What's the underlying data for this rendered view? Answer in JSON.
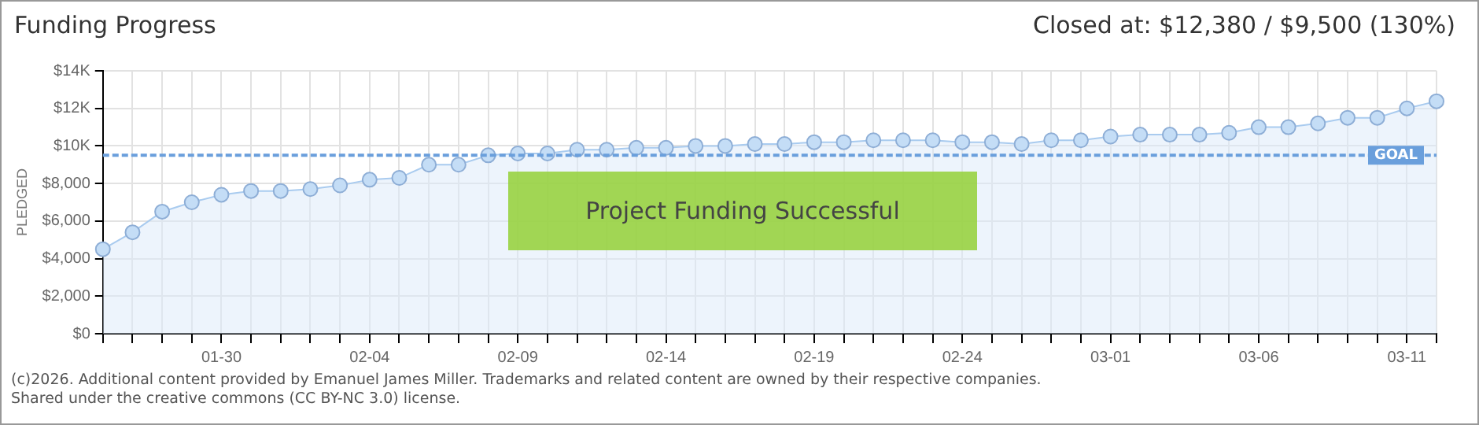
{
  "chart_data": {
    "type": "area",
    "title": "Funding Progress",
    "subtitle": "Closed at: $12,380 / $9,500 (130%)",
    "ylabel": "PLEDGED",
    "categories": [
      null,
      null,
      null,
      null,
      "01-30",
      null,
      null,
      null,
      null,
      "02-04",
      null,
      null,
      null,
      null,
      "02-09",
      null,
      null,
      null,
      null,
      "02-14",
      null,
      null,
      null,
      null,
      "02-19",
      null,
      null,
      null,
      null,
      "02-24",
      null,
      null,
      null,
      null,
      "03-01",
      null,
      null,
      null,
      null,
      "03-06",
      null,
      null,
      null,
      null,
      "03-11",
      null
    ],
    "series": [
      {
        "color": "#a9cbef",
        "values": [
          4500,
          5400,
          6500,
          7000,
          7400,
          7600,
          7600,
          7700,
          7900,
          8200,
          8300,
          9000,
          9000,
          9500,
          9600,
          9600,
          9800,
          9800,
          9900,
          9900,
          10000,
          10000,
          10100,
          10100,
          10200,
          10200,
          10300,
          10300,
          10300,
          10200,
          10200,
          10100,
          10300,
          10300,
          10500,
          10600,
          10600,
          10600,
          10700,
          11000,
          11000,
          11200,
          11500,
          11500,
          12000,
          12380
        ]
      }
    ],
    "ylim": [
      0,
      14000
    ],
    "yticks": [
      {
        "value": 0,
        "label": "$0"
      },
      {
        "value": 2000,
        "label": "$2,000"
      },
      {
        "value": 4000,
        "label": "$4,000"
      },
      {
        "value": 6000,
        "label": "$6,000"
      },
      {
        "value": 8000,
        "label": "$8,000"
      },
      {
        "value": 10000,
        "label": "$10K"
      },
      {
        "value": 12000,
        "label": "$12K"
      },
      {
        "value": 14000,
        "label": "$14K"
      }
    ],
    "grid": true,
    "marker": "circle",
    "legend": false,
    "ref_lines": [
      {
        "axis": "y",
        "value": 9500,
        "label": "GOAL",
        "color": "#6a9fdc",
        "line_style": "dashed"
      }
    ],
    "annotations": [
      "Project Funding Successful",
      "(c)2026. Additional content provided by Emanuel James Miller. Trademarks and related content are owned by their respective companies.",
      "Shared under the creative commons (CC BY-NC 3.0) license."
    ]
  }
}
